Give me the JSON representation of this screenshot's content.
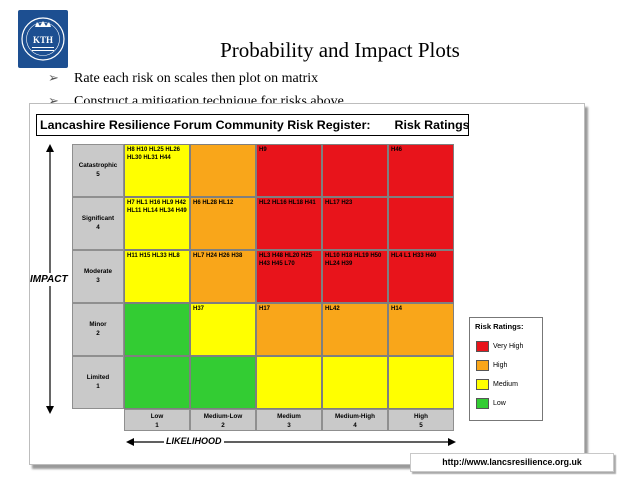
{
  "slide": {
    "title": "Probability and Impact Plots",
    "bullets": [
      "Rate each risk on scales then plot on matrix",
      "Construct a mitigation technique for risks above"
    ],
    "logo_text": "KTH",
    "source_url": "http://www.lancsresilience.org.uk"
  },
  "colors": {
    "very_high": "#e8141b",
    "high": "#f9a61a",
    "medium": "#ffff00",
    "low": "#33cc33",
    "label_bg": "#c9c9c9",
    "logo_bg": "#1d4f91"
  },
  "figure": {
    "title_left": "Lancashire Resilience Forum Community Risk Register:",
    "title_right": "Risk Ratings",
    "impact_axis_label": "IMPACT",
    "likelihood_axis_label": "LIKELIHOOD",
    "impact_levels": [
      {
        "name": "Catastrophic",
        "value": "5"
      },
      {
        "name": "Significant",
        "value": "4"
      },
      {
        "name": "Moderate",
        "value": "3"
      },
      {
        "name": "Minor",
        "value": "2"
      },
      {
        "name": "Limited",
        "value": "1"
      }
    ],
    "likelihood_levels": [
      {
        "name": "Low",
        "value": "1"
      },
      {
        "name": "Medium-Low",
        "value": "2"
      },
      {
        "name": "Medium",
        "value": "3"
      },
      {
        "name": "Medium-High",
        "value": "4"
      },
      {
        "name": "High",
        "value": "5"
      }
    ],
    "grid": [
      [
        {
          "rating": "medium",
          "risks": "H8 H10 HL25 HL26 HL30 HL31 H44"
        },
        {
          "rating": "high",
          "risks": ""
        },
        {
          "rating": "very_high",
          "risks": "H9"
        },
        {
          "rating": "very_high",
          "risks": ""
        },
        {
          "rating": "very_high",
          "risks": "H46"
        }
      ],
      [
        {
          "rating": "medium",
          "risks": "H7 HL1 H16 HL9 H42 HL11 HL14 HL34 H49"
        },
        {
          "rating": "high",
          "risks": "H6 HL28 HL12"
        },
        {
          "rating": "very_high",
          "risks": "HL2 HL16 HL18 H41"
        },
        {
          "rating": "very_high",
          "risks": "HL17 H23"
        },
        {
          "rating": "very_high",
          "risks": ""
        }
      ],
      [
        {
          "rating": "medium",
          "risks": "H11 H15 HL33 HL8"
        },
        {
          "rating": "high",
          "risks": "HL7 H24 H26 H38"
        },
        {
          "rating": "very_high",
          "risks": "HL3 H48 HL20 H25 H43 H45 L70"
        },
        {
          "rating": "very_high",
          "risks": "HL10 H18 HL19 H50 HL24 H39"
        },
        {
          "rating": "very_high",
          "risks": "HL4 L1 H33 H40"
        }
      ],
      [
        {
          "rating": "low",
          "risks": ""
        },
        {
          "rating": "medium",
          "risks": "H37"
        },
        {
          "rating": "high",
          "risks": "H17"
        },
        {
          "rating": "high",
          "risks": "HL42"
        },
        {
          "rating": "high",
          "risks": "H14"
        }
      ],
      [
        {
          "rating": "low",
          "risks": ""
        },
        {
          "rating": "low",
          "risks": ""
        },
        {
          "rating": "medium",
          "risks": ""
        },
        {
          "rating": "medium",
          "risks": ""
        },
        {
          "rating": "medium",
          "risks": ""
        }
      ]
    ],
    "legend": {
      "title": "Risk Ratings:",
      "items": [
        {
          "label": "Very High",
          "rating": "very_high"
        },
        {
          "label": "High",
          "rating": "high"
        },
        {
          "label": "Medium",
          "rating": "medium"
        },
        {
          "label": "Low",
          "rating": "low"
        }
      ]
    }
  }
}
